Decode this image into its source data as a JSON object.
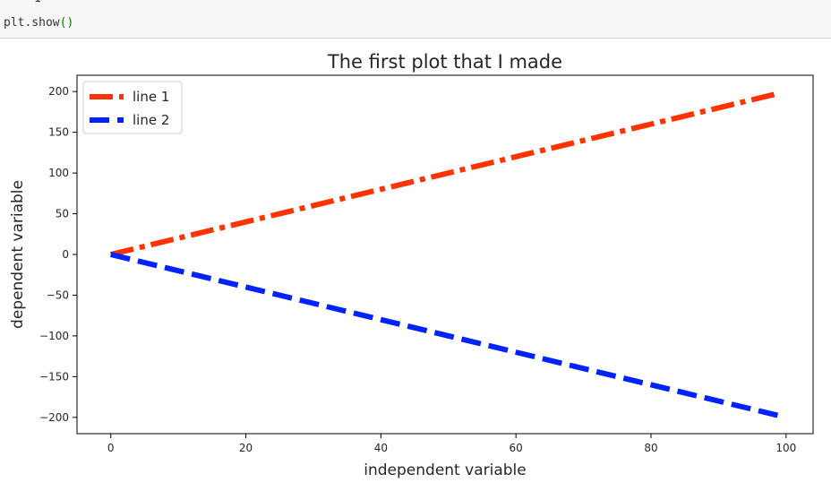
{
  "code": {
    "previous_line": "1",
    "statement": "plt.show",
    "parens": "()"
  },
  "chart_data": {
    "type": "line",
    "title": "The first plot that I made",
    "xlabel": "independent variable",
    "ylabel": "dependent variable",
    "xlim": [
      -5,
      104
    ],
    "ylim": [
      -220,
      220
    ],
    "x_ticks": [
      0,
      20,
      40,
      60,
      80,
      100
    ],
    "y_ticks": [
      200,
      150,
      100,
      50,
      0,
      -50,
      -100,
      -150,
      -200
    ],
    "y_tick_labels": [
      "200",
      "150",
      "100",
      "50",
      "0",
      "−50",
      "−100",
      "−150",
      "−200"
    ],
    "grid": false,
    "legend": "upper-left",
    "series": [
      {
        "name": "line 1",
        "color": "#ff3300",
        "linestyle": "dashdot",
        "x": [
          0,
          99
        ],
        "y": [
          0,
          198
        ]
      },
      {
        "name": "line 2",
        "color": "#0022ff",
        "linestyle": "dashed",
        "x": [
          0,
          99
        ],
        "y": [
          0,
          -198
        ]
      }
    ]
  }
}
